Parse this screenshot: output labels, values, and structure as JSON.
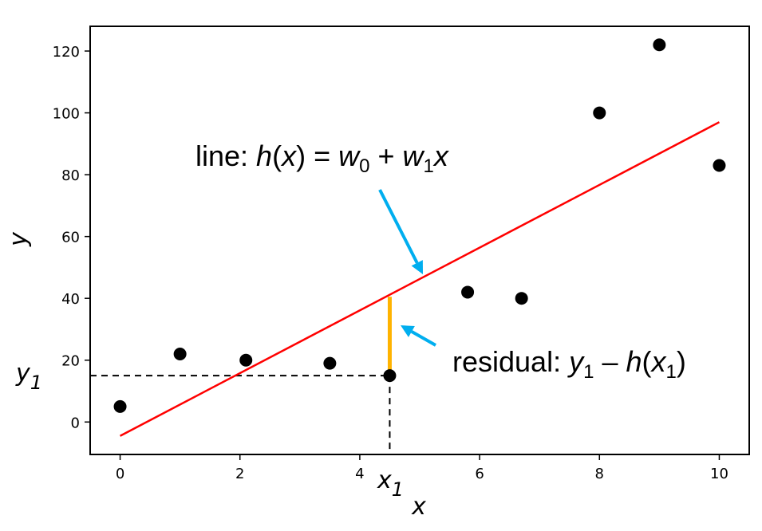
{
  "chart_data": {
    "type": "scatter",
    "title": "",
    "xlabel": "x",
    "ylabel": "y",
    "xlim": [
      -0.5,
      10.5
    ],
    "ylim": [
      -10.5,
      128
    ],
    "xticks": [
      0,
      2,
      4,
      6,
      8,
      10
    ],
    "yticks": [
      0,
      20,
      40,
      60,
      80,
      100,
      120
    ],
    "grid": false,
    "points": [
      {
        "x": 0,
        "y": 5
      },
      {
        "x": 1,
        "y": 22
      },
      {
        "x": 2.1,
        "y": 20
      },
      {
        "x": 3.5,
        "y": 19
      },
      {
        "x": 4.5,
        "y": 15
      },
      {
        "x": 5.8,
        "y": 42
      },
      {
        "x": 6.7,
        "y": 40
      },
      {
        "x": 8,
        "y": 100
      },
      {
        "x": 9,
        "y": 122
      },
      {
        "x": 10,
        "y": 83
      }
    ],
    "fit_line": {
      "x": [
        0,
        10
      ],
      "y": [
        -4.5,
        97
      ],
      "color": "#ff0000"
    },
    "highlight": {
      "x": 4.5,
      "y": 15,
      "residual_top": 40.5,
      "residual_color": "#ffb300",
      "x_label": "x",
      "x_sub": "1",
      "y_label": "y",
      "y_sub": "1"
    },
    "annotations": {
      "line_label": {
        "text_pre": "line: ",
        "h": "h",
        "x": "x",
        "w": "w",
        "sub0": "0",
        "sub1": "1",
        "plus": " + ",
        "eq": ") = "
      },
      "residual_label": {
        "text_pre": "residual: ",
        "y": "y",
        "sub1": "1",
        "minus": " – ",
        "h": "h",
        "x": "x"
      },
      "arrow_color": "#00aeef"
    },
    "point_color": "#000000"
  }
}
